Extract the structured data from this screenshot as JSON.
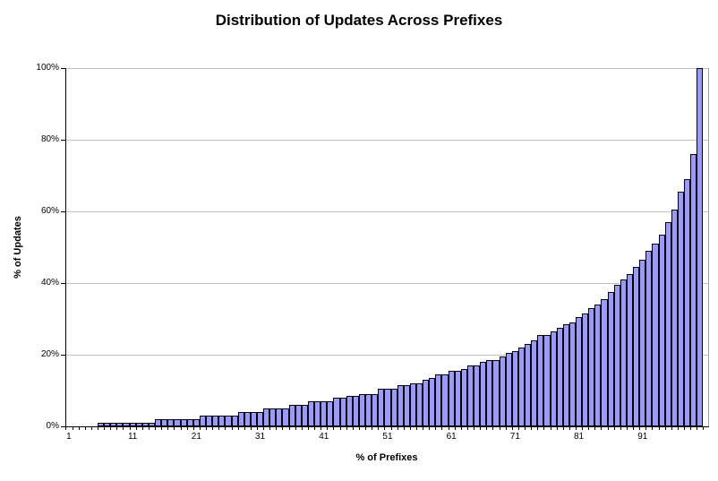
{
  "chart_data": {
    "type": "bar",
    "title": "Distribution of Updates Across Prefixes",
    "xlabel": "% of Prefixes",
    "ylabel": "% of Updates",
    "ylim": [
      0,
      100
    ],
    "xlim": [
      1,
      100
    ],
    "grid": "horizontal gridlines every 20%",
    "legend": "none",
    "y_ticks": [
      0,
      20,
      40,
      60,
      80,
      100
    ],
    "y_tick_labels": [
      "0%",
      "20%",
      "40%",
      "60%",
      "80%",
      "100%"
    ],
    "x_tick_units": [
      1,
      11,
      21,
      31,
      41,
      51,
      61,
      71,
      81,
      91
    ],
    "x_tick_labels": [
      "1",
      "11",
      "21",
      "31",
      "41",
      "51",
      "61",
      "71",
      "81",
      "91"
    ],
    "bar_fill_color": "#9999FF",
    "bar_border_color": "#000000",
    "gridline_color": "#C0C0C0",
    "x": [
      1,
      2,
      3,
      4,
      5,
      6,
      7,
      8,
      9,
      10,
      11,
      12,
      13,
      14,
      15,
      16,
      17,
      18,
      19,
      20,
      21,
      22,
      23,
      24,
      25,
      26,
      27,
      28,
      29,
      30,
      31,
      32,
      33,
      34,
      35,
      36,
      37,
      38,
      39,
      40,
      41,
      42,
      43,
      44,
      45,
      46,
      47,
      48,
      49,
      50,
      51,
      52,
      53,
      54,
      55,
      56,
      57,
      58,
      59,
      60,
      61,
      62,
      63,
      64,
      65,
      66,
      67,
      68,
      69,
      70,
      71,
      72,
      73,
      74,
      75,
      76,
      77,
      78,
      79,
      80,
      81,
      82,
      83,
      84,
      85,
      86,
      87,
      88,
      89,
      90,
      91,
      92,
      93,
      94,
      95,
      96,
      97,
      98,
      99,
      100
    ],
    "values": [
      0,
      0,
      0,
      0,
      0,
      1,
      1,
      1,
      1,
      1,
      1,
      1,
      1,
      1,
      2,
      2,
      2,
      2,
      2,
      2,
      2,
      3,
      3,
      3,
      3,
      3,
      3,
      4,
      4,
      4,
      4,
      5,
      5,
      5,
      5,
      6,
      6,
      6,
      7,
      7,
      7,
      7,
      8,
      8,
      8.5,
      8.5,
      9,
      9,
      9,
      10.5,
      10.5,
      10.5,
      11.5,
      11.5,
      12,
      12,
      13,
      13.5,
      14.5,
      14.5,
      15.5,
      15.5,
      16,
      17,
      17,
      18,
      18.5,
      18.5,
      19.5,
      20.5,
      21,
      22,
      23,
      24,
      25.5,
      25.5,
      26.5,
      27.5,
      28.5,
      29,
      30.5,
      31.5,
      33,
      34,
      35.5,
      37.5,
      39.5,
      41,
      42.5,
      44.5,
      46.5,
      49,
      51,
      53.5,
      57,
      60.5,
      65.5,
      69,
      76,
      100
    ]
  }
}
